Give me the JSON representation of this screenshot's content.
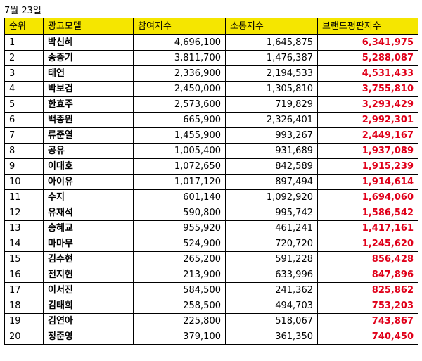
{
  "date_label": "7월 23일",
  "colors": {
    "header_bg": "#f5e600",
    "brand_value": "#e0001a"
  },
  "table": {
    "headers": [
      "순위",
      "광고모델",
      "참여지수",
      "소통지수",
      "브랜드평판지수"
    ],
    "rows": [
      [
        "1",
        "박신혜",
        "4,696,100",
        "1,645,875",
        "6,341,975"
      ],
      [
        "2",
        "송중기",
        "3,811,700",
        "1,476,387",
        "5,288,087"
      ],
      [
        "3",
        "태연",
        "2,336,900",
        "2,194,533",
        "4,531,433"
      ],
      [
        "4",
        "박보검",
        "2,450,000",
        "1,305,810",
        "3,755,810"
      ],
      [
        "5",
        "한효주",
        "2,573,600",
        "719,829",
        "3,293,429"
      ],
      [
        "6",
        "백종원",
        "665,900",
        "2,326,401",
        "2,992,301"
      ],
      [
        "7",
        "류준열",
        "1,455,900",
        "993,267",
        "2,449,167"
      ],
      [
        "8",
        "공유",
        "1,005,400",
        "931,689",
        "1,937,089"
      ],
      [
        "9",
        "이대호",
        "1,072,650",
        "842,589",
        "1,915,239"
      ],
      [
        "10",
        "아이유",
        "1,017,120",
        "897,494",
        "1,914,614"
      ],
      [
        "11",
        "수지",
        "601,140",
        "1,092,920",
        "1,694,060"
      ],
      [
        "12",
        "유재석",
        "590,800",
        "995,742",
        "1,586,542"
      ],
      [
        "13",
        "송혜교",
        "955,920",
        "461,241",
        "1,417,161"
      ],
      [
        "14",
        "마마무",
        "524,900",
        "720,720",
        "1,245,620"
      ],
      [
        "15",
        "김수현",
        "265,200",
        "591,228",
        "856,428"
      ],
      [
        "16",
        "전지현",
        "213,900",
        "633,996",
        "847,896"
      ],
      [
        "17",
        "이서진",
        "584,500",
        "241,362",
        "825,862"
      ],
      [
        "18",
        "김태희",
        "258,500",
        "494,703",
        "753,203"
      ],
      [
        "19",
        "김연아",
        "225,800",
        "518,067",
        "743,867"
      ],
      [
        "20",
        "정준영",
        "379,100",
        "361,350",
        "740,450"
      ]
    ]
  }
}
